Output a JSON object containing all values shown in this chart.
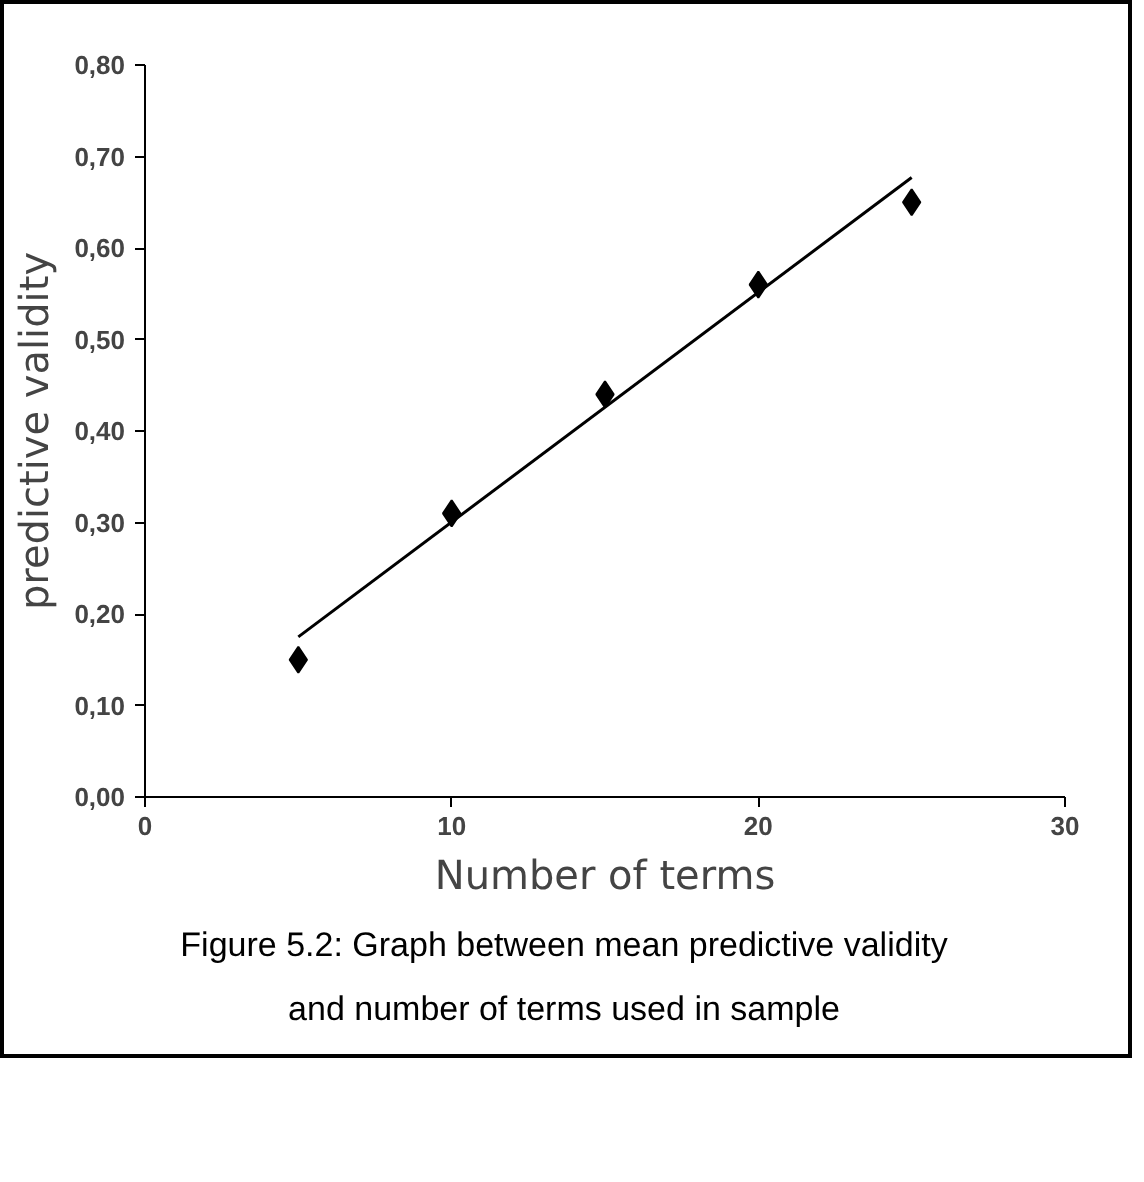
{
  "chart_data": {
    "type": "scatter",
    "xlabel": "Number of terms",
    "ylabel": "predictive validity",
    "x": [
      5,
      10,
      15,
      20,
      25
    ],
    "series": [
      {
        "color": "#000000",
        "marker": "diamond",
        "values": [
          0.15,
          0.31,
          0.44,
          0.56,
          0.65
        ]
      },
      {
        "type": "line",
        "color": "#000000",
        "x": [
          5,
          25
        ],
        "values": [
          0.175,
          0.677
        ]
      }
    ],
    "xlim": [
      0,
      30
    ],
    "xticks": [
      0,
      10,
      20,
      30
    ],
    "ylim": [
      0,
      0.8
    ],
    "yticks": [
      {
        "value": 0,
        "label": "0,00"
      },
      {
        "value": 0.1,
        "label": "0,10"
      },
      {
        "value": 0.2,
        "label": "0,20"
      },
      {
        "value": 0.3,
        "label": "0,30"
      },
      {
        "value": 0.4,
        "label": "0,40"
      },
      {
        "value": 0.5,
        "label": "0,50"
      },
      {
        "value": 0.6,
        "label": "0,60"
      },
      {
        "value": 0.7,
        "label": "0,70"
      },
      {
        "value": 0.8,
        "label": "0,80"
      }
    ],
    "grid": false,
    "annotations": [
      "Figure 5.2: Graph between mean predictive validity and number of terms used in sample"
    ]
  }
}
